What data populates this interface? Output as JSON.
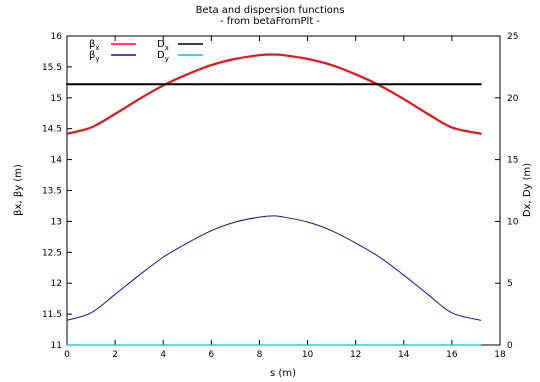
{
  "chart_data": {
    "type": "line",
    "title": "Beta and dispersion functions",
    "subtitle": "- from betaFromPlt -",
    "xlabel": "s (m)",
    "ylabel_left": "βx, βy (m)",
    "ylabel_right": "Dx, Dy (m)",
    "xlim": [
      0,
      18
    ],
    "ylim_left": [
      11,
      16
    ],
    "ylim_right": [
      0,
      25
    ],
    "grid": false,
    "legend_position": "top-left",
    "x_ticks": [
      "0",
      "2",
      "4",
      "6",
      "8",
      "10",
      "12",
      "14",
      "16",
      "18"
    ],
    "y_left_ticks": [
      "11",
      "11.5",
      "12",
      "12.5",
      "13",
      "13.5",
      "14",
      "14.5",
      "15",
      "15.5",
      "16"
    ],
    "y_right_ticks": [
      "0",
      "5",
      "10",
      "15",
      "20",
      "25"
    ],
    "series": [
      {
        "name": "βx",
        "axis": "left",
        "color": "#e8141b",
        "x": [
          0,
          1,
          2,
          3,
          4,
          5,
          6,
          7,
          8,
          8.6,
          9,
          10,
          11,
          12,
          13,
          14,
          15,
          16,
          17.2
        ],
        "y": [
          14.42,
          14.52,
          14.74,
          14.98,
          15.2,
          15.38,
          15.53,
          15.63,
          15.69,
          15.7,
          15.69,
          15.63,
          15.53,
          15.38,
          15.2,
          14.98,
          14.74,
          14.52,
          14.42
        ]
      },
      {
        "name": "βy",
        "axis": "left",
        "color": "#1010c0",
        "x": [
          0,
          1,
          2,
          3,
          4,
          5,
          6,
          7,
          8,
          8.6,
          9,
          10,
          11,
          12,
          13,
          14,
          15,
          16,
          17.2
        ],
        "y": [
          11.4,
          11.52,
          11.82,
          12.13,
          12.42,
          12.65,
          12.85,
          12.99,
          13.07,
          13.09,
          13.07,
          12.99,
          12.85,
          12.65,
          12.42,
          12.13,
          11.82,
          11.52,
          11.4
        ]
      },
      {
        "name": "Dx",
        "axis": "right",
        "color": "#000000",
        "x": [
          0,
          2,
          15.2,
          17.2
        ],
        "y": [
          21.1,
          21.1,
          21.1,
          21.1
        ]
      },
      {
        "name": "Dy",
        "axis": "right",
        "color": "#00c8c8",
        "x": [
          0,
          17.2
        ],
        "y": [
          0,
          0
        ]
      }
    ]
  }
}
